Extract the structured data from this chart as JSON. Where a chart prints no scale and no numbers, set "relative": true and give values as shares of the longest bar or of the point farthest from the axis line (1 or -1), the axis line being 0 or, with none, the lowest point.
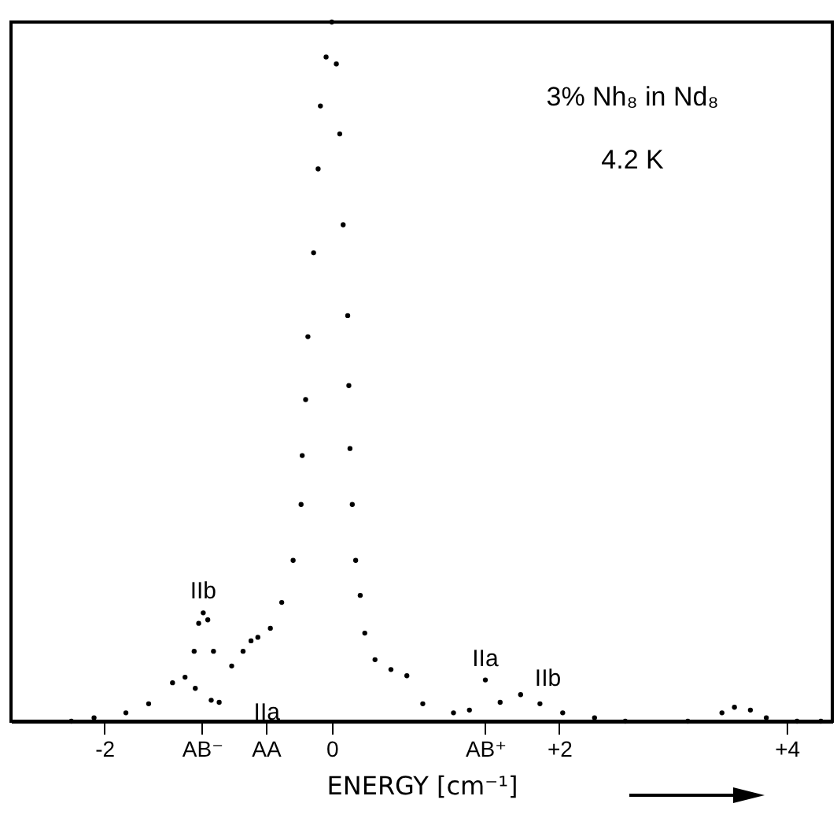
{
  "chart_data": {
    "type": "scatter",
    "relative": true,
    "xlabel": "ENERGY [cm⁻¹]",
    "marker": "circle",
    "grid": false,
    "legend": false,
    "xlim": [
      -2.82,
      4.4
    ],
    "xticks": [
      -2,
      {
        "value": -1.14,
        "label": "AB⁻"
      },
      {
        "value": -0.58,
        "label": "AA"
      },
      0,
      {
        "value": 1.35,
        "label": "AB⁺"
      },
      {
        "value": 2,
        "label": "+2"
      },
      {
        "value": 4,
        "label": "+4"
      }
    ],
    "annotations": [
      "3% Nh₈ in Nd₈",
      "4.2 K",
      {
        "text": "IIb",
        "x": -1.13,
        "y": 0.155
      },
      {
        "text": "IIa",
        "x": -0.99,
        "y": 0.027
      },
      {
        "text": "IIa",
        "x": 1.35,
        "y": 0.059
      },
      {
        "text": "IIb",
        "x": 1.9,
        "y": 0.03
      }
    ],
    "series": [
      {
        "color": "#000000",
        "x": [
          -2.29,
          -2.09,
          -1.81,
          -1.61,
          -1.4,
          -1.29,
          -1.2,
          -1.06,
          -0.99,
          -0.88,
          -0.78,
          -0.71,
          -0.65,
          -0.54,
          -0.44,
          -0.34,
          -0.27,
          -0.26,
          -0.23,
          -0.21,
          -0.16,
          -0.12,
          -0.1,
          -0.05,
          0,
          0.04,
          0.07,
          0.1,
          0.14,
          0.15,
          0.16,
          0.18,
          0.21,
          0.25,
          0.29,
          0.38,
          0.52,
          0.66,
          0.8,
          1.07,
          1.21,
          1.35,
          1.48,
          1.66,
          1.83,
          2.03,
          2.31,
          2.58,
          3.13,
          3.43,
          3.54,
          3.68,
          3.82,
          4.09,
          4.3,
          -1.21,
          -1.17,
          -1.13,
          -1.09,
          -1.04
        ],
        "values": [
          0,
          0.005,
          0.012,
          0.025,
          0.055,
          0.063,
          0.047,
          0.03,
          0.027,
          0.079,
          0.1,
          0.115,
          0.12,
          0.133,
          0.17,
          0.23,
          0.31,
          0.38,
          0.46,
          0.55,
          0.67,
          0.79,
          0.88,
          0.95,
          1,
          0.94,
          0.84,
          0.71,
          0.58,
          0.48,
          0.39,
          0.31,
          0.23,
          0.18,
          0.126,
          0.088,
          0.074,
          0.065,
          0.025,
          0.012,
          0.016,
          0.059,
          0.027,
          0.038,
          0.025,
          0.012,
          0.005,
          0,
          0,
          0.012,
          0.02,
          0.016,
          0.005,
          0,
          0,
          0.1,
          0.14,
          0.155,
          0.145,
          0.1
        ]
      }
    ]
  }
}
